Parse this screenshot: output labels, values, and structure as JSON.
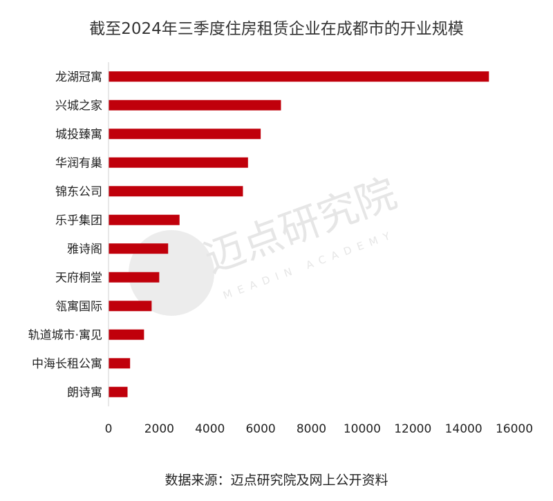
{
  "header": {
    "title": "截至2024年三季度住房租赁企业在成都市的开业规模"
  },
  "footer": {
    "source": "数据来源：迈点研究院及网上公开资料"
  },
  "watermark": {
    "brand": "迈点研究院",
    "tagline": "MEADIN ACADEMY"
  },
  "colors": {
    "bar": "#c0000b",
    "axis": "#d0d0d0",
    "watermark": "#e6e6e6"
  },
  "chart_data": {
    "type": "bar",
    "orientation": "horizontal",
    "title": "截至2024年三季度住房租赁企业在成都市的开业规模",
    "xlabel": "",
    "ylabel": "",
    "categories": [
      "龙湖冠寓",
      "兴城之家",
      "城投臻寓",
      "华润有巢",
      "锦东公司",
      "乐乎集团",
      "雅诗阁",
      "天府桐堂",
      "瓴寓国际",
      "轨道城市·寓见",
      "中海长租公寓",
      "朗诗寓"
    ],
    "values": [
      15000,
      6800,
      6000,
      5500,
      5300,
      2800,
      2350,
      2000,
      1700,
      1400,
      850,
      750
    ],
    "xlim": [
      0,
      16000
    ],
    "xticks": [
      "0",
      "2000",
      "4000",
      "6000",
      "8000",
      "10000",
      "12000",
      "14000",
      "16000"
    ],
    "grid": false,
    "legend": "none"
  }
}
